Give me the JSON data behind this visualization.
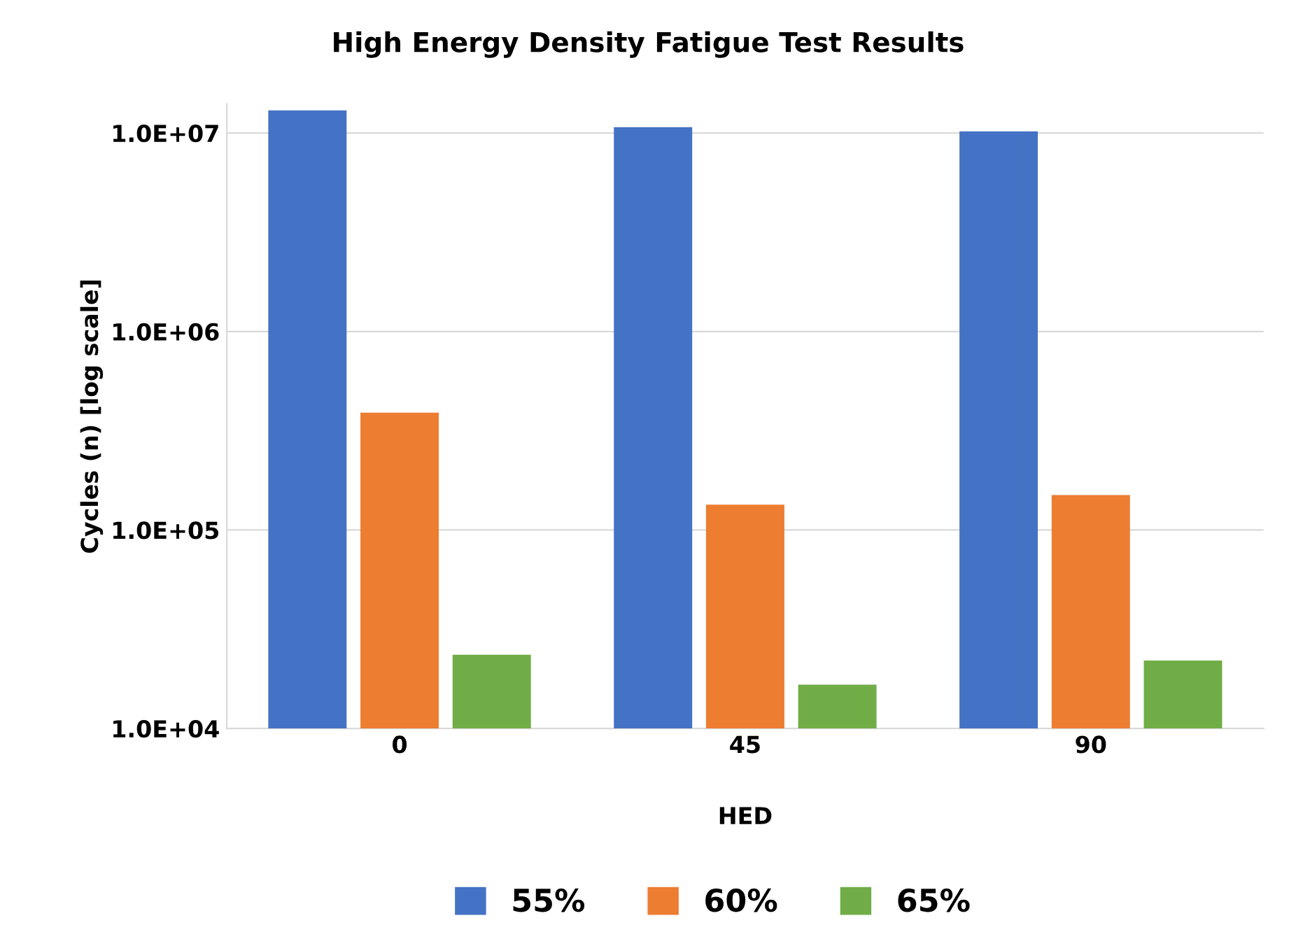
{
  "chart_data": {
    "type": "bar",
    "title": "High Energy Density Fatigue Test Results",
    "xlabel": "HED",
    "ylabel": "Cycles (n) [log scale]",
    "categories": [
      "0",
      "45",
      "90"
    ],
    "series": [
      {
        "name": "55%",
        "color": "#4472c4",
        "values": [
          13000000,
          10700000,
          10200000
        ]
      },
      {
        "name": "60%",
        "color": "#ed7d31",
        "values": [
          390000,
          134000,
          150000
        ]
      },
      {
        "name": "65%",
        "color": "#70ad47",
        "values": [
          23500,
          16600,
          22000
        ]
      }
    ],
    "log": "y",
    "ylim": [
      10000,
      14000000
    ],
    "yticks": [
      {
        "value": 10000,
        "label": "1.0E+04"
      },
      {
        "value": 100000,
        "label": "1.0E+05"
      },
      {
        "value": 1000000,
        "label": "1.0E+06"
      },
      {
        "value": 10000000,
        "label": "1.0E+07"
      }
    ],
    "grid": "y",
    "legend": "bottom"
  }
}
